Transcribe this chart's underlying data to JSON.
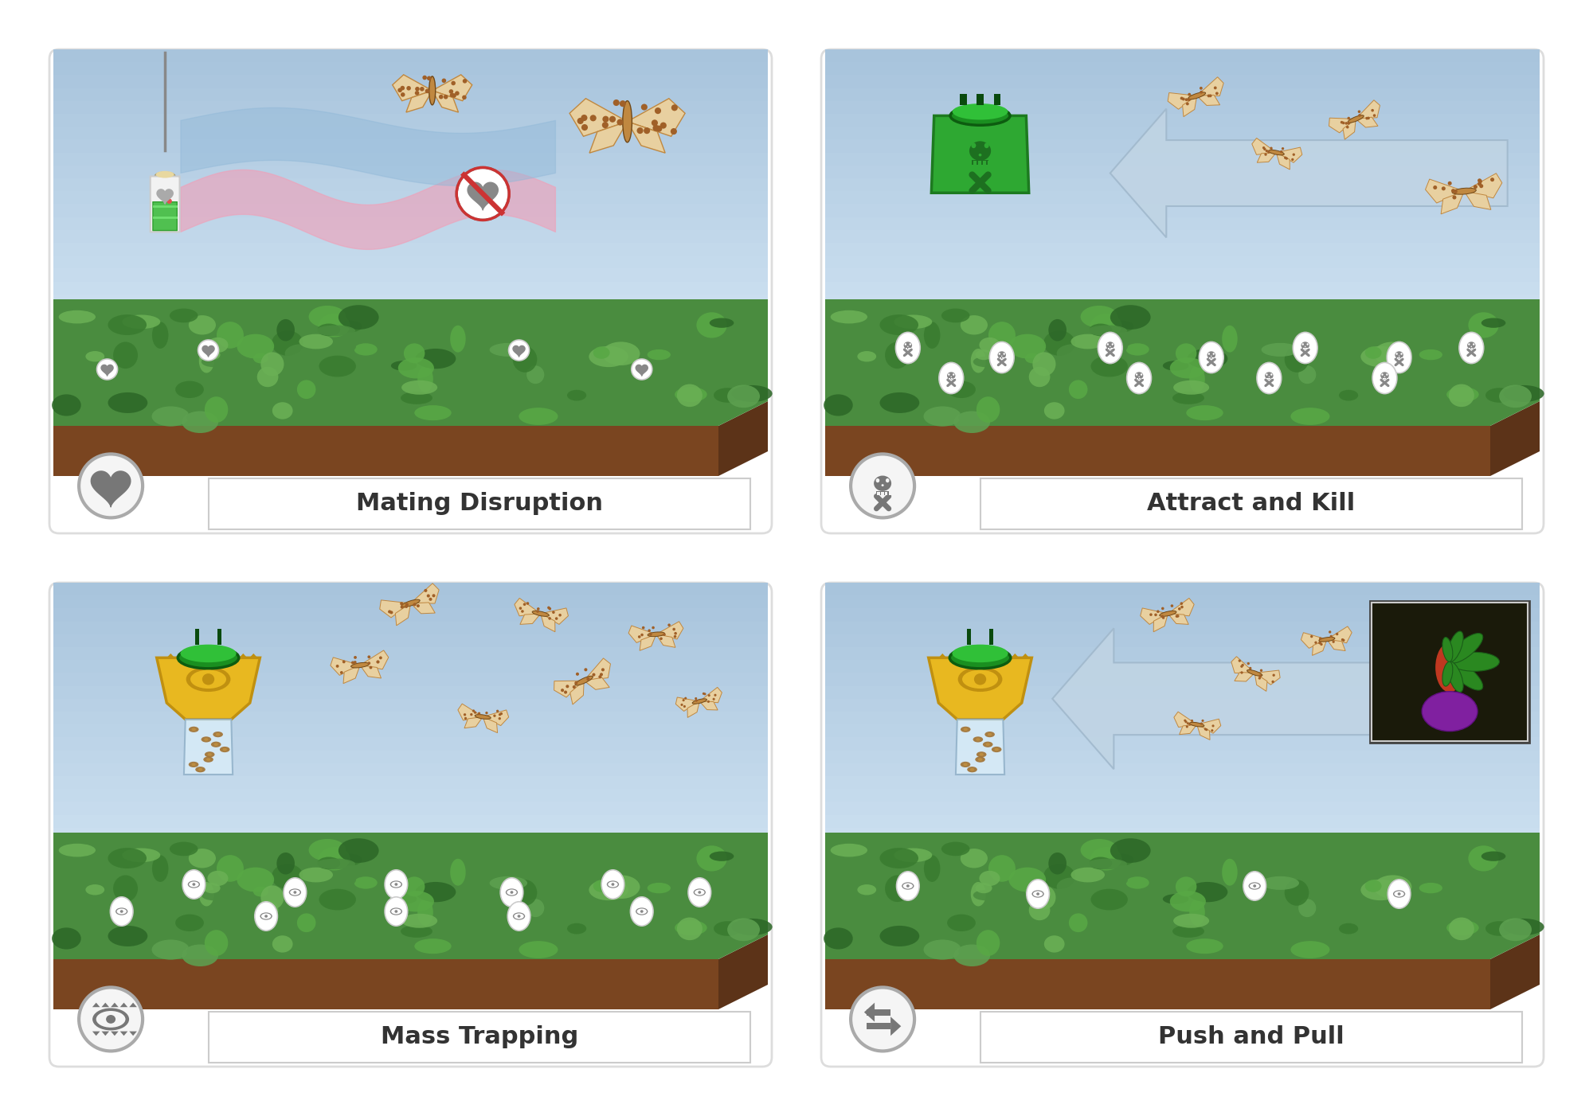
{
  "panel_titles": [
    "Mating Disruption",
    "Attract and Kill",
    "Mass Trapping",
    "Push and Pull"
  ],
  "sky_color": "#c5ddef",
  "sky_top": "#a8c4dc",
  "sky_bot": "#cce0f0",
  "field_green": "#4a8c3f",
  "field_green2": "#5da050",
  "soil_color": "#7a4520",
  "soil_color2": "#5c3318",
  "frame_color": "#dddddd",
  "label_font_size": 22,
  "green_trap": "#2ea832",
  "green_trap_dark": "#1d7a20",
  "green_lid": "#25b030",
  "yellow_trap": "#e8b820",
  "yellow_trap_dark": "#c09010",
  "skull_gray": "#777777",
  "icon_bg": "#f5f5f5",
  "icon_border": "#aaaaaa",
  "arrow_color": "#c0d4e4",
  "arrow_edge": "#a0b8cc",
  "moth_body": "#c08840",
  "moth_wing": "#e8d0a0"
}
